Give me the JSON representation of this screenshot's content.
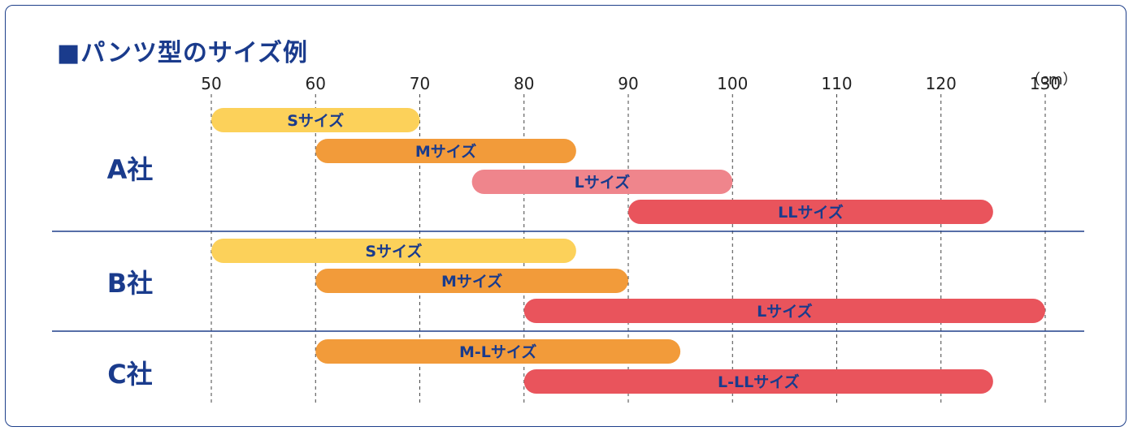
{
  "title": "■パンツ型のサイズ例",
  "unit_label": "（cm）",
  "colors": {
    "frame": "#1e3f8a",
    "text_blue": "#1a3b8c",
    "S": "#fcd15a",
    "M": "#f29b3a",
    "L_light": "#ef858c",
    "L": "#e9545c"
  },
  "chart_data": {
    "type": "bar",
    "orientation": "horizontal-range",
    "xlabel": "",
    "unit": "cm",
    "xlim": [
      50,
      130
    ],
    "xticks": [
      50,
      60,
      70,
      80,
      90,
      100,
      110,
      120,
      130
    ],
    "grid": "dashed-vertical",
    "companies": [
      {
        "name": "A社",
        "bars": [
          {
            "label": "Sサイズ",
            "start": 50,
            "end": 70,
            "color": "#fcd15a"
          },
          {
            "label": "Mサイズ",
            "start": 60,
            "end": 85,
            "color": "#f29b3a"
          },
          {
            "label": "Lサイズ",
            "start": 75,
            "end": 100,
            "color": "#ef858c"
          },
          {
            "label": "LLサイズ",
            "start": 90,
            "end": 125,
            "color": "#e9545c"
          }
        ]
      },
      {
        "name": "B社",
        "bars": [
          {
            "label": "Sサイズ",
            "start": 50,
            "end": 85,
            "color": "#fcd15a"
          },
          {
            "label": "Mサイズ",
            "start": 60,
            "end": 90,
            "color": "#f29b3a"
          },
          {
            "label": "Lサイズ",
            "start": 80,
            "end": 130,
            "color": "#e9545c"
          }
        ]
      },
      {
        "name": "C社",
        "bars": [
          {
            "label": "M-Lサイズ",
            "start": 60,
            "end": 95,
            "color": "#f29b3a"
          },
          {
            "label": "L-LLサイズ",
            "start": 80,
            "end": 125,
            "color": "#e9545c"
          }
        ]
      }
    ]
  }
}
